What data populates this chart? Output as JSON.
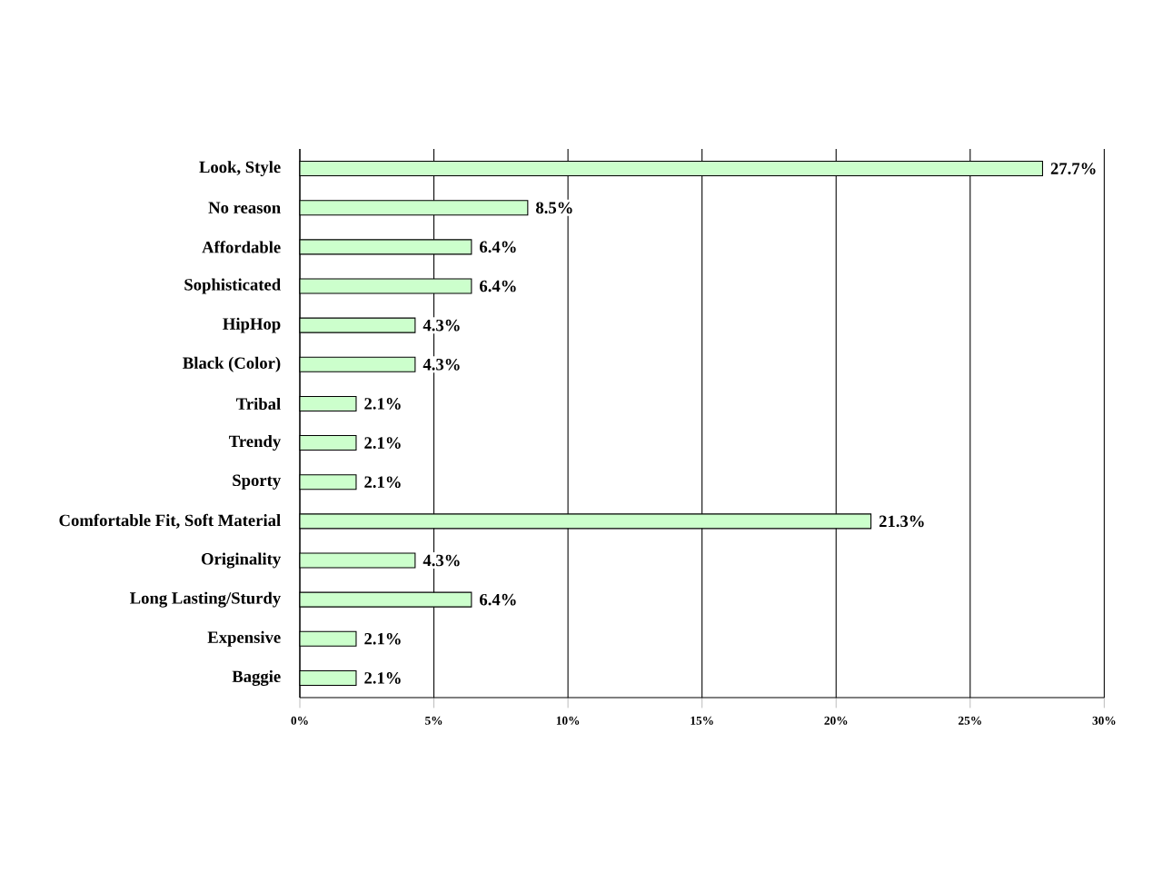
{
  "chart_data": {
    "type": "bar",
    "orientation": "horizontal",
    "color": "#ccffcc",
    "categories": [
      "Look, Style",
      "No reason",
      "Affordable",
      "Sophisticated",
      "HipHop",
      "Black (Color)",
      "Tribal",
      "Trendy",
      "Sporty",
      "Comfortable Fit, Soft Material",
      "Originality",
      "Long Lasting/Sturdy",
      "Expensive",
      "Baggie"
    ],
    "values": [
      27.7,
      8.5,
      6.4,
      6.4,
      4.3,
      4.3,
      2.1,
      2.1,
      2.1,
      21.3,
      4.3,
      6.4,
      2.1,
      2.1
    ],
    "value_labels": [
      "27.7%",
      "8.5%",
      "6.4%",
      "6.4%",
      "4.3%",
      "4.3%",
      "2.1%",
      "2.1%",
      "2.1%",
      "21.3%",
      "4.3%",
      "6.4%",
      "2.1%",
      "2.1%"
    ],
    "xlim": [
      0,
      30
    ],
    "xticks": [
      {
        "value": 0,
        "label": "0%"
      },
      {
        "value": 5,
        "label": "5%"
      },
      {
        "value": 10,
        "label": "10%"
      },
      {
        "value": 15,
        "label": "15%"
      },
      {
        "value": 20,
        "label": "20%"
      },
      {
        "value": 25,
        "label": "25%"
      },
      {
        "value": 30,
        "label": "30%"
      }
    ],
    "grid": "x"
  }
}
